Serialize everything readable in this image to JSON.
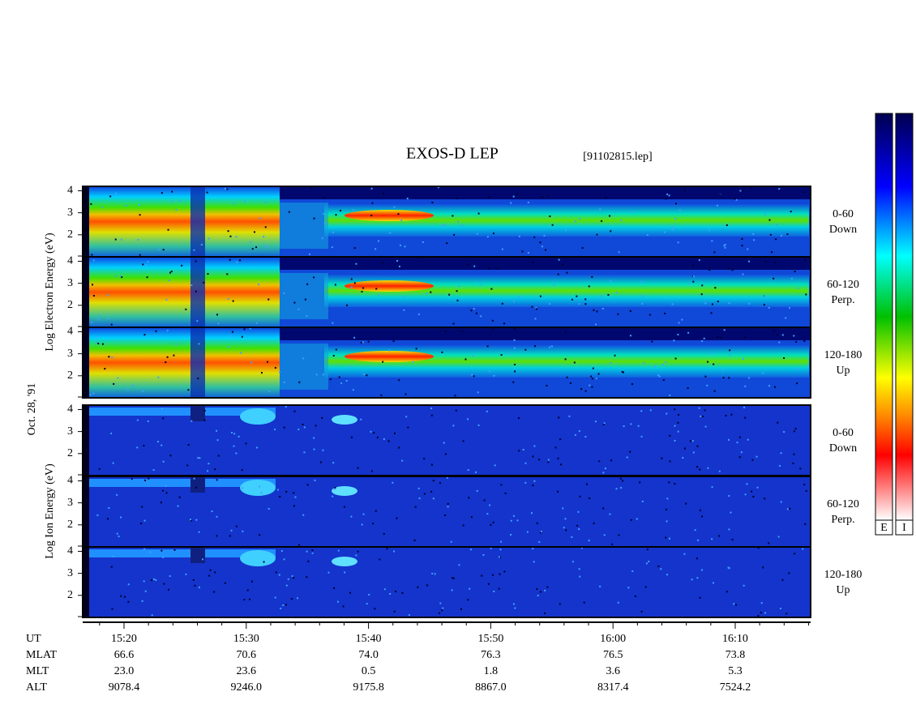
{
  "header": {
    "title": "EXOS-D LEP",
    "file": "[91102815.lep]"
  },
  "date": "Oct. 28, '91",
  "groups": [
    {
      "kind": "electron",
      "ylabel": "Log  Electron  Energy (eV)",
      "yticks": [
        2,
        3,
        4
      ],
      "ylim": [
        1,
        4.2
      ],
      "panels": [
        {
          "angle": "0-60",
          "direction": "Down"
        },
        {
          "angle": "60-120",
          "direction": "Perp."
        },
        {
          "angle": "120-180",
          "direction": "Up"
        }
      ]
    },
    {
      "kind": "ion",
      "ylabel": "Log  Ion  Energy (eV)",
      "yticks": [
        2,
        3,
        4
      ],
      "ylim": [
        1,
        4.2
      ],
      "panels": [
        {
          "angle": "0-60",
          "direction": "Down"
        },
        {
          "angle": "60-120",
          "direction": "Perp."
        },
        {
          "angle": "120-180",
          "direction": "Up"
        }
      ]
    }
  ],
  "table": {
    "rows": [
      {
        "label": "UT",
        "values": [
          "15:20",
          "15:30",
          "15:40",
          "15:50",
          "16:00",
          "16:10"
        ]
      },
      {
        "label": "MLAT",
        "values": [
          "66.6",
          "70.6",
          "74.0",
          "76.3",
          "76.5",
          "73.8"
        ]
      },
      {
        "label": "MLT",
        "values": [
          "23.0",
          "23.6",
          "0.5",
          "1.8",
          "3.6",
          "5.3"
        ]
      },
      {
        "label": "ALT",
        "values": [
          "9078.4",
          "9246.0",
          "9175.8",
          "8867.0",
          "8317.4",
          "7524.2"
        ]
      }
    ]
  },
  "colorbars": [
    "E",
    "I"
  ]
}
